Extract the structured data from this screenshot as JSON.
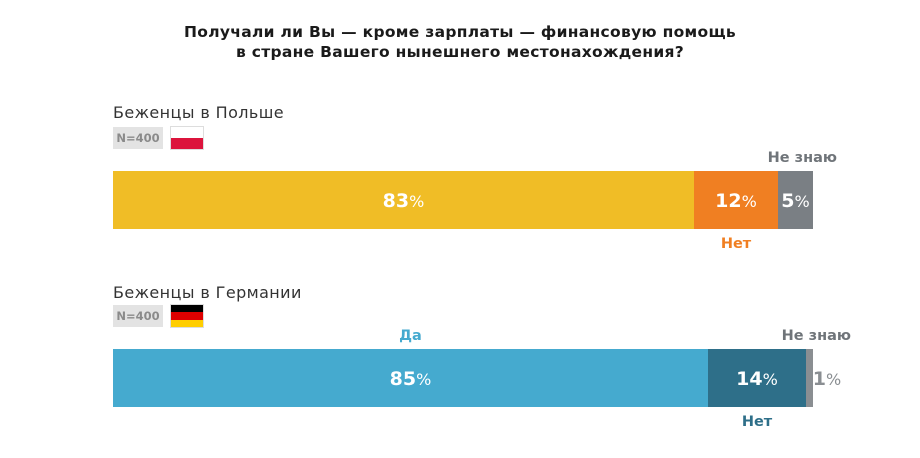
{
  "title_lines": [
    "Получали ли Вы — кроме зарплаты — финансовую помощь",
    "в стране Вашего нынешнего местонахождения?"
  ],
  "groups": [
    {
      "label": "Беженцы в Польше",
      "n": "N=400",
      "flag": {
        "name": "poland-flag-icon",
        "colors": [
          "#ffffff",
          "#dc143c"
        ]
      }
    },
    {
      "label": "Беженцы в Германии",
      "n": "N=400",
      "flag": {
        "name": "germany-flag-icon",
        "colors": [
          "#000000",
          "#dd0000",
          "#ffce00"
        ]
      }
    }
  ],
  "chart_data": {
    "type": "bar",
    "orientation": "horizontal",
    "stacked": true,
    "percent_of_total": true,
    "title": "Получали ли Вы — кроме зарплаты — финансовую помощь в стране Вашего нынешнего местонахождения?",
    "categories": [
      "Беженцы в Польше",
      "Беженцы в Германии"
    ],
    "value_suffix": "%",
    "bars": [
      {
        "segments": [
          {
            "label": "",
            "value": 83,
            "color": "#f0bd26",
            "text_color": "#ffffff"
          },
          {
            "label": "Нет",
            "value": 12,
            "color": "#f07f22",
            "text_color": "#ffffff",
            "label_color": "#f07f22",
            "label_pos": "below"
          },
          {
            "label": "Не знаю",
            "value": 5,
            "color": "#7a7f84",
            "text_color": "#ffffff",
            "label_color": "#6f7479",
            "label_pos": "above"
          }
        ]
      },
      {
        "segments": [
          {
            "label": "Да",
            "value": 85,
            "color": "#45aacf",
            "text_color": "#ffffff",
            "label_color": "#45aacf",
            "label_pos": "above"
          },
          {
            "label": "Нет",
            "value": 14,
            "color": "#2e6f89",
            "text_color": "#ffffff",
            "label_color": "#2e6f89",
            "label_pos": "below"
          },
          {
            "label": "Не знаю",
            "value": 1,
            "color": "#8a8e92",
            "text_color": "#8a8e92",
            "label_color": "#6f7479",
            "label_pos": "above"
          }
        ]
      }
    ],
    "legend": "none",
    "grid": false
  }
}
